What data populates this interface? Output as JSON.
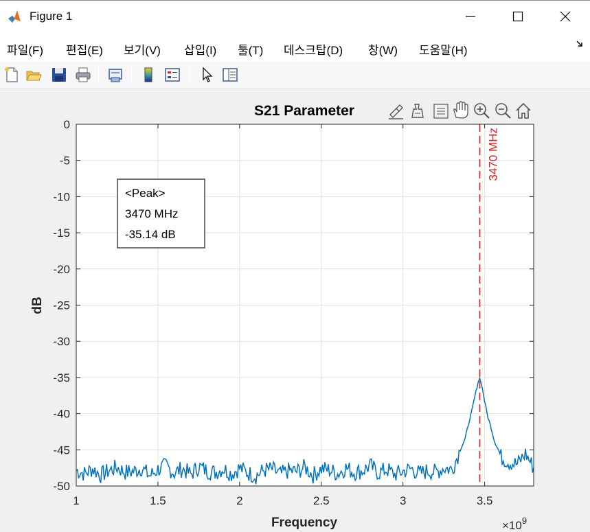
{
  "window": {
    "title": "Figure 1"
  },
  "menu": {
    "items": [
      "파일(F)",
      "편집(E)",
      "보기(V)",
      "삽입(I)",
      "툴(T)",
      "데스크탑(D)",
      "창(W)",
      "도움말(H)"
    ],
    "overflow_icon": "chevron-down-icon"
  },
  "toolbar": {
    "icons": [
      "new-figure-icon",
      "open-file-icon",
      "save-icon",
      "print-icon",
      "link-plot-icon",
      "insert-colorbar-icon",
      "insert-legend-icon",
      "edit-plot-pointer-icon",
      "property-inspector-icon"
    ]
  },
  "axes_toolbar": {
    "icons": [
      "brush-icon",
      "datatip-icon",
      "hand-pan-icon",
      "zoom-in-icon",
      "zoom-out-icon",
      "home-icon"
    ]
  },
  "colors": {
    "line": "#0072bd",
    "marker_line": "#e02020",
    "grid": "#e2e2e2"
  },
  "chart_data": {
    "type": "line",
    "title": "S21 Parameter",
    "xlabel": "Frequency",
    "ylabel": "dB",
    "x_exponent": "×10",
    "x_exponent_power": "9",
    "xlim": [
      1,
      3.8
    ],
    "ylim": [
      -50,
      0
    ],
    "xticks": [
      "1",
      "1.5",
      "2",
      "2.5",
      "3",
      "3.5"
    ],
    "xtick_values": [
      1,
      1.5,
      2,
      2.5,
      3,
      3.5
    ],
    "yticks": [
      "0",
      "-5",
      "-10",
      "-15",
      "-20",
      "-25",
      "-30",
      "-35",
      "-40",
      "-45",
      "-50"
    ],
    "ytick_values": [
      0,
      -5,
      -10,
      -15,
      -20,
      -25,
      -30,
      -35,
      -40,
      -45,
      -50
    ],
    "grid": true,
    "series": [
      {
        "x": [
          1.0,
          1.05,
          1.1,
          1.15,
          1.2,
          1.25,
          1.3,
          1.35,
          1.4,
          1.45,
          1.5,
          1.55,
          1.6,
          1.65,
          1.7,
          1.75,
          1.8,
          1.85,
          1.9,
          1.95,
          2.0,
          2.05,
          2.1,
          2.15,
          2.2,
          2.25,
          2.3,
          2.35,
          2.4,
          2.45,
          2.5,
          2.55,
          2.6,
          2.65,
          2.7,
          2.75,
          2.8,
          2.85,
          2.9,
          2.95,
          3.0,
          3.05,
          3.1,
          3.15,
          3.2,
          3.25,
          3.3,
          3.35,
          3.38,
          3.4,
          3.42,
          3.44,
          3.46,
          3.47,
          3.48,
          3.5,
          3.52,
          3.54,
          3.56,
          3.58,
          3.6,
          3.65,
          3.7,
          3.75,
          3.8
        ],
        "y": [
          -47.8,
          -48.3,
          -47.6,
          -48.5,
          -47.9,
          -47.4,
          -48.1,
          -48.0,
          -47.5,
          -48.6,
          -47.7,
          -47.2,
          -48.2,
          -47.6,
          -48.4,
          -47.3,
          -47.9,
          -48.1,
          -47.6,
          -48.3,
          -47.5,
          -48.2,
          -48.6,
          -47.8,
          -47.7,
          -48.4,
          -47.9,
          -48.0,
          -47.4,
          -48.5,
          -47.6,
          -47.8,
          -48.3,
          -47.5,
          -48.1,
          -47.9,
          -47.2,
          -48.2,
          -47.7,
          -48.4,
          -48.0,
          -47.6,
          -48.3,
          -47.9,
          -48.1,
          -47.5,
          -47.7,
          -45.0,
          -43.5,
          -41.5,
          -39.8,
          -37.6,
          -35.6,
          -35.14,
          -35.8,
          -38.3,
          -40.5,
          -42.0,
          -43.8,
          -44.8,
          -46.0,
          -46.7,
          -47.0,
          -45.5,
          -47.5
        ]
      }
    ],
    "marker": {
      "x": 3.47,
      "label": "3470 MHz"
    },
    "annotation": {
      "lines": [
        "<Peak>",
        "3470 MHz",
        "-35.14 dB"
      ]
    }
  }
}
